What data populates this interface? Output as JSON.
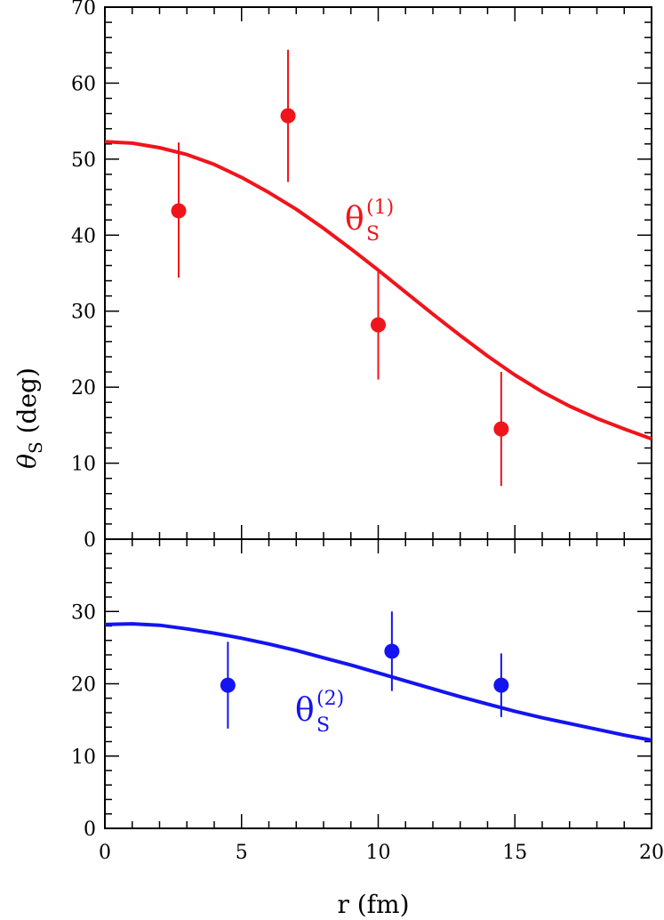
{
  "chart_data": [
    {
      "type": "scatter",
      "panel": "top",
      "xlim": [
        0,
        20
      ],
      "ylim": [
        0,
        70
      ],
      "y_ticks": [
        0,
        10,
        20,
        30,
        40,
        50,
        60,
        70
      ],
      "grid": false,
      "color": "#f0141c",
      "curve_label": {
        "base": "θ",
        "sub": "S",
        "sup": "(1)"
      },
      "points": [
        {
          "x": 2.7,
          "y": 43.2,
          "err_low": 34.4,
          "err_high": 52.2
        },
        {
          "x": 6.7,
          "y": 55.7,
          "err_low": 47.0,
          "err_high": 64.4
        },
        {
          "x": 10.0,
          "y": 28.2,
          "err_low": 21.0,
          "err_high": 35.4
        },
        {
          "x": 14.5,
          "y": 14.5,
          "err_low": 7.0,
          "err_high": 22.0
        }
      ],
      "curve": {
        "x": [
          0,
          1,
          2,
          3,
          4,
          5,
          6,
          7,
          8,
          9,
          10,
          11,
          12,
          13,
          14,
          15,
          16,
          17,
          18,
          19,
          20
        ],
        "y": [
          52.3,
          52.1,
          51.5,
          50.6,
          49.3,
          47.6,
          45.6,
          43.4,
          40.9,
          38.2,
          35.4,
          32.5,
          29.6,
          26.8,
          24.1,
          21.6,
          19.4,
          17.5,
          15.9,
          14.5,
          13.2
        ]
      }
    },
    {
      "type": "scatter",
      "panel": "bottom",
      "xlim": [
        0,
        20
      ],
      "ylim": [
        0,
        40
      ],
      "y_ticks": [
        0,
        10,
        20,
        30
      ],
      "grid": false,
      "color": "#1414f0",
      "curve_label": {
        "base": "θ",
        "sub": "S",
        "sup": "(2)"
      },
      "points": [
        {
          "x": 4.5,
          "y": 19.8,
          "err_low": 13.8,
          "err_high": 25.8
        },
        {
          "x": 10.5,
          "y": 24.5,
          "err_low": 19.0,
          "err_high": 30.0
        },
        {
          "x": 14.5,
          "y": 19.8,
          "err_low": 15.4,
          "err_high": 24.2
        }
      ],
      "curve": {
        "x": [
          0,
          1,
          2,
          3,
          4,
          5,
          6,
          7,
          8,
          9,
          10,
          11,
          12,
          13,
          14,
          15,
          16,
          17,
          18,
          19,
          20
        ],
        "y": [
          28.2,
          28.3,
          28.1,
          27.6,
          27.0,
          26.3,
          25.5,
          24.6,
          23.6,
          22.6,
          21.5,
          20.4,
          19.3,
          18.2,
          17.2,
          16.2,
          15.3,
          14.5,
          13.7,
          12.9,
          12.2
        ]
      }
    }
  ],
  "x_ticks": [
    0,
    5,
    10,
    15,
    20
  ],
  "xlabel": "r  (fm)",
  "ylabel": {
    "base": "θ",
    "sub": "S",
    "rest": " (deg)"
  }
}
